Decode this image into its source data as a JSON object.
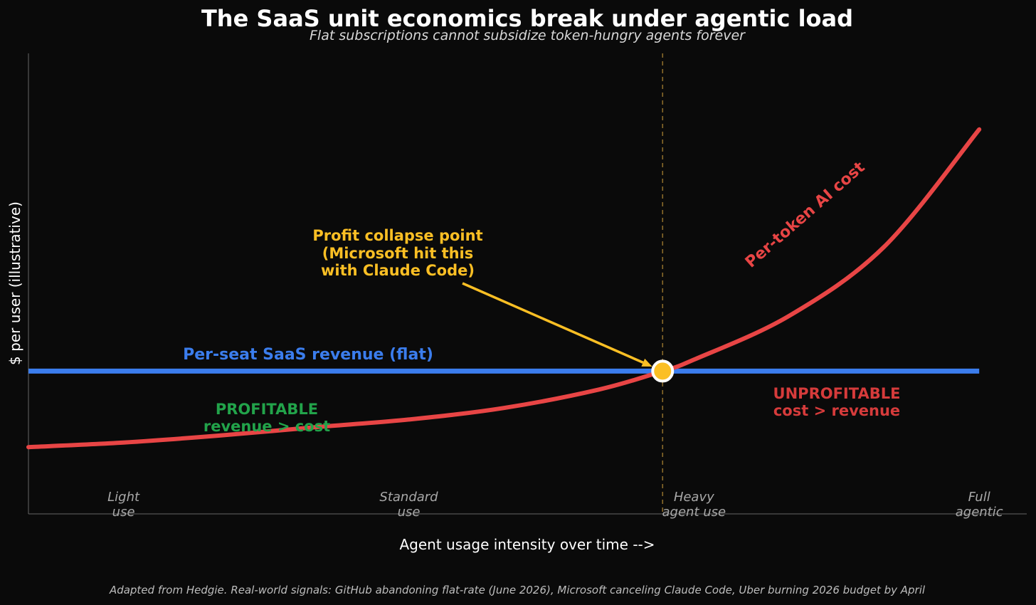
{
  "chart_data": {
    "type": "line",
    "title": "The SaaS unit economics break under agentic load",
    "subtitle": "Flat subscriptions cannot subsidize token-hungry agents forever",
    "xlabel": "Agent usage intensity over time -->",
    "ylabel": "$ per user (illustrative)",
    "xlim": [
      0,
      10.5
    ],
    "ylim": [
      0,
      10
    ],
    "grid": false,
    "stages": [
      {
        "x": 1.0,
        "lines": [
          "Light",
          "use"
        ]
      },
      {
        "x": 4.0,
        "lines": [
          "Standard",
          "use"
        ]
      },
      {
        "x": 7.0,
        "lines": [
          "Heavy",
          "agent use"
        ]
      },
      {
        "x": 10.0,
        "lines": [
          "Full",
          "agentic"
        ]
      }
    ],
    "series": [
      {
        "name": "Per-seat SaaS revenue (flat)",
        "color": "#3b7ded",
        "x": [
          0,
          10
        ],
        "y": [
          3.1,
          3.1
        ]
      },
      {
        "name": "Per-token AI cost",
        "color": "#e84545",
        "x": [
          0,
          1,
          2,
          3,
          4,
          5,
          6,
          6.67,
          7,
          8,
          9,
          10
        ],
        "y": [
          1.45,
          1.55,
          1.7,
          1.88,
          2.05,
          2.3,
          2.7,
          3.1,
          3.35,
          4.3,
          5.8,
          8.35
        ]
      }
    ],
    "crossover": {
      "x": 6.67,
      "y": 3.1,
      "color": "#fbbf24"
    },
    "annotations": {
      "collapse": {
        "lines": [
          "Profit collapse point",
          "(Microsoft hit this",
          "with Claude Code)"
        ],
        "color": "#fbbf24"
      },
      "profitable": {
        "lines": [
          "PROFITABLE",
          "revenue > cost"
        ],
        "color": "#22a34a"
      },
      "unprofitable": {
        "lines": [
          "UNPROFITABLE",
          "cost > revenue"
        ],
        "color": "#d63b3b"
      }
    },
    "caption": "Adapted from Hedgie. Real-world signals: GitHub abandoning flat-rate (June 2026), Microsoft canceling Claude Code, Uber burning 2026 budget by April"
  }
}
